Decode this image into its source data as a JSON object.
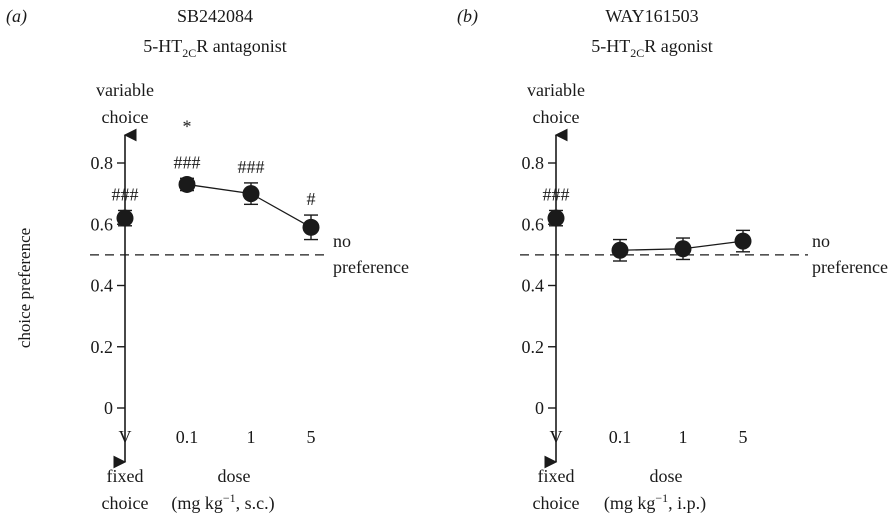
{
  "chart_data": [
    {
      "type": "scatter",
      "panel": "(a)",
      "title": "SB242084",
      "subtitle": {
        "pre": "5-HT",
        "sub": "2C",
        "post": "R antagonist"
      },
      "ylabel": "choice preference",
      "ylim": [
        0,
        0.9
      ],
      "yticks": [
        0,
        0.2,
        0.4,
        0.6,
        0.8
      ],
      "ytick_labels": [
        "0",
        "0.2",
        "0.4",
        "0.6",
        "0.8"
      ],
      "categories": [
        "V",
        "0.1",
        "1",
        "5"
      ],
      "values": [
        0.62,
        0.73,
        0.7,
        0.59
      ],
      "errors": [
        0.025,
        0.02,
        0.035,
        0.04
      ],
      "connect_from": 1,
      "reference_line": 0.5,
      "reference_label": [
        "no",
        "preference"
      ],
      "y_top_label": [
        "variable",
        "choice"
      ],
      "y_bottom_label": [
        "fixed",
        "choice"
      ],
      "xlabel": {
        "line1": "dose",
        "pre": "(mg kg",
        "sup": "−1",
        "post": ", s.c.)"
      },
      "markers": [
        [
          "###"
        ],
        [
          "*",
          "###"
        ],
        [
          "###"
        ],
        [
          "#"
        ]
      ]
    },
    {
      "type": "scatter",
      "panel": "(b)",
      "title": "WAY161503",
      "subtitle": {
        "pre": "5-HT",
        "sub": "2C",
        "post": "R agonist"
      },
      "ylabel": "",
      "ylim": [
        0,
        0.9
      ],
      "yticks": [
        0,
        0.2,
        0.4,
        0.6,
        0.8
      ],
      "ytick_labels": [
        "0",
        "0.2",
        "0.4",
        "0.6",
        "0.8"
      ],
      "categories": [
        "V",
        "0.1",
        "1",
        "5"
      ],
      "values": [
        0.62,
        0.515,
        0.52,
        0.545
      ],
      "errors": [
        0.025,
        0.035,
        0.035,
        0.035
      ],
      "connect_from": 1,
      "reference_line": 0.5,
      "reference_label": [
        "no",
        "preference"
      ],
      "y_top_label": [
        "variable",
        "choice"
      ],
      "y_bottom_label": [
        "fixed",
        "choice"
      ],
      "xlabel": {
        "line1": "dose",
        "pre": "(mg kg",
        "sup": "−1",
        "post": ", i.p.)"
      },
      "markers": [
        [
          "###"
        ],
        [],
        [],
        []
      ]
    }
  ]
}
